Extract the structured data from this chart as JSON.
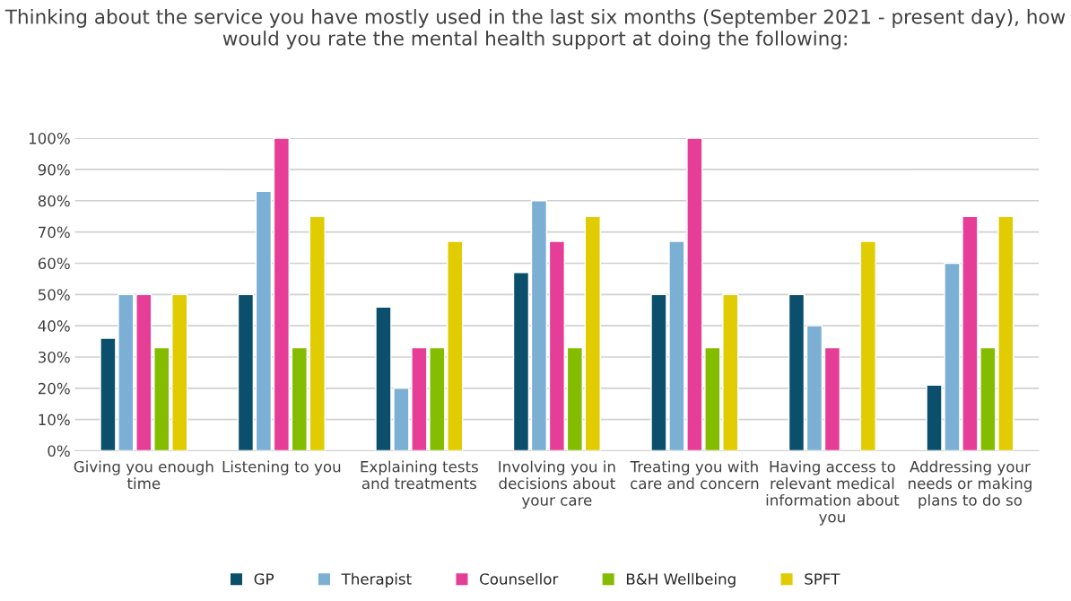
{
  "chart_data": {
    "type": "bar",
    "title": "Thinking about the service you have mostly used in the last six months (September 2021 - present day), how would you rate the mental health support at doing the following:",
    "categories": [
      "Giving you enough time",
      "Listening to you",
      "Explaining tests and treatments",
      "Involving you in decisions about your care",
      "Treating you with care and concern",
      "Having access to relevant medical information about you",
      "Addressing your needs or making plans to do so"
    ],
    "series": [
      {
        "name": "GP",
        "color": "#0b4f6c",
        "values": [
          36,
          50,
          46,
          57,
          50,
          50,
          21
        ]
      },
      {
        "name": "Therapist",
        "color": "#7bafd4",
        "values": [
          50,
          83,
          20,
          80,
          67,
          40,
          60
        ]
      },
      {
        "name": "Counsellor",
        "color": "#e63e96",
        "values": [
          50,
          100,
          33,
          67,
          100,
          33,
          75
        ]
      },
      {
        "name": "B&H Wellbeing",
        "color": "#84bc00",
        "values": [
          33,
          33,
          33,
          33,
          33,
          null,
          33
        ]
      },
      {
        "name": "SPFT",
        "color": "#e0cc00",
        "values": [
          50,
          75,
          67,
          75,
          50,
          67,
          75
        ]
      }
    ],
    "ylim": [
      0,
      100
    ],
    "yticks": [
      {
        "value": 0,
        "label": "0%"
      },
      {
        "value": 10,
        "label": "10%"
      },
      {
        "value": 20,
        "label": "20%"
      },
      {
        "value": 30,
        "label": "30%"
      },
      {
        "value": 40,
        "label": "40%"
      },
      {
        "value": 50,
        "label": "50%"
      },
      {
        "value": 60,
        "label": "60%"
      },
      {
        "value": 70,
        "label": "70%"
      },
      {
        "value": 80,
        "label": "80%"
      },
      {
        "value": 90,
        "label": "90%"
      },
      {
        "value": 100,
        "label": "100%"
      }
    ],
    "grid": "y",
    "legend": "bottom"
  }
}
